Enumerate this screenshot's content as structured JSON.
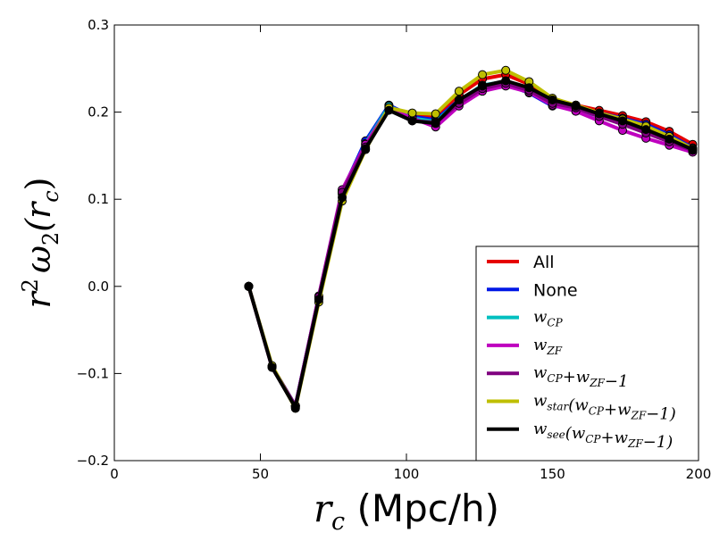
{
  "chart_data": {
    "type": "line",
    "title": "",
    "xlabel_var": "r",
    "xlabel_sub": "c",
    "xlabel_unit": "(Mpc/h)",
    "ylabel_pre": "r",
    "ylabel_sup": "2",
    "ylabel_omega": "ω",
    "ylabel_sub": "2",
    "ylabel_arg": "(r",
    "ylabel_arg_sub": "c",
    "ylabel_close": ")",
    "xlim": [
      0,
      200
    ],
    "ylim": [
      -0.2,
      0.3
    ],
    "xticks": [
      0,
      50,
      100,
      150,
      200
    ],
    "xtick_labels": [
      "0",
      "50",
      "100",
      "150",
      "200"
    ],
    "yticks": [
      -0.2,
      -0.1,
      0.0,
      0.1,
      0.2,
      0.3
    ],
    "ytick_labels": [
      "−0.2",
      "−0.1",
      "0.0",
      "0.1",
      "0.2",
      "0.3"
    ],
    "grid": false,
    "legend_position": "lower-right",
    "x": [
      46,
      54,
      62,
      70,
      78,
      86,
      94,
      102,
      110,
      118,
      126,
      134,
      142,
      150,
      158,
      166,
      174,
      182,
      190,
      198
    ],
    "series": [
      {
        "name": "All",
        "color": "#e60000",
        "values": [
          0.0,
          -0.092,
          -0.137,
          -0.014,
          0.106,
          0.162,
          0.206,
          0.197,
          0.195,
          0.22,
          0.238,
          0.243,
          0.232,
          0.214,
          0.208,
          0.202,
          0.196,
          0.189,
          0.178,
          0.163
        ]
      },
      {
        "name": "None",
        "color": "#0018e6",
        "values": [
          0.0,
          -0.092,
          -0.137,
          -0.012,
          0.109,
          0.167,
          0.208,
          0.195,
          0.191,
          0.214,
          0.229,
          0.232,
          0.222,
          0.207,
          0.204,
          0.199,
          0.193,
          0.186,
          0.174,
          0.159
        ]
      },
      {
        "name": "w_CP",
        "color": "#00bfbf",
        "values": [
          0.0,
          -0.092,
          -0.137,
          -0.013,
          0.108,
          0.164,
          0.207,
          0.193,
          0.189,
          0.213,
          0.231,
          0.235,
          0.224,
          0.21,
          0.201,
          0.196,
          0.189,
          0.181,
          0.171,
          0.157
        ]
      },
      {
        "name": "w_ZF",
        "color": "#bf00bf",
        "values": [
          0.0,
          -0.093,
          -0.138,
          -0.011,
          0.111,
          0.163,
          0.204,
          0.193,
          0.183,
          0.207,
          0.224,
          0.23,
          0.223,
          0.208,
          0.201,
          0.19,
          0.179,
          0.17,
          0.162,
          0.154
        ]
      },
      {
        "name": "w_CP + w_ZF − 1",
        "color": "#7f007f",
        "values": [
          0.0,
          -0.092,
          -0.137,
          -0.012,
          0.108,
          0.16,
          0.203,
          0.19,
          0.188,
          0.21,
          0.227,
          0.233,
          0.225,
          0.21,
          0.205,
          0.195,
          0.186,
          0.176,
          0.166,
          0.156
        ]
      },
      {
        "name": "w_star(w_CP + w_ZF − 1)",
        "color": "#bfbf00",
        "values": [
          0.0,
          -0.091,
          -0.14,
          -0.018,
          0.098,
          0.157,
          0.205,
          0.199,
          0.198,
          0.224,
          0.243,
          0.248,
          0.235,
          0.216,
          0.208,
          0.199,
          0.192,
          0.184,
          0.172,
          0.158
        ]
      },
      {
        "name": "w_see(w_CP + w_ZF − 1)",
        "color": "#000000",
        "values": [
          0.0,
          -0.093,
          -0.139,
          -0.015,
          0.102,
          0.158,
          0.202,
          0.19,
          0.187,
          0.214,
          0.23,
          0.236,
          0.228,
          0.214,
          0.207,
          0.198,
          0.19,
          0.18,
          0.169,
          0.157
        ]
      }
    ],
    "legend": [
      {
        "text": "All",
        "kind": "plain"
      },
      {
        "text": "None",
        "kind": "plain"
      },
      {
        "kind": "math",
        "parts": [
          {
            "t": "w",
            "s": "CP"
          }
        ]
      },
      {
        "kind": "math",
        "parts": [
          {
            "t": "w",
            "s": "ZF"
          }
        ]
      },
      {
        "kind": "math",
        "parts": [
          {
            "t": "w",
            "s": "CP"
          },
          {
            "t": "+w",
            "s": "ZF"
          },
          {
            "t": "−1",
            "s": ""
          }
        ]
      },
      {
        "kind": "math",
        "parts": [
          {
            "t": "w",
            "s": "star"
          },
          {
            "t": "(w",
            "s": "CP"
          },
          {
            "t": "+w",
            "s": "ZF"
          },
          {
            "t": "−1)",
            "s": ""
          }
        ]
      },
      {
        "kind": "math",
        "parts": [
          {
            "t": "w",
            "s": "see"
          },
          {
            "t": "(w",
            "s": "CP"
          },
          {
            "t": "+w",
            "s": "ZF"
          },
          {
            "t": "−1)",
            "s": ""
          }
        ]
      }
    ]
  }
}
